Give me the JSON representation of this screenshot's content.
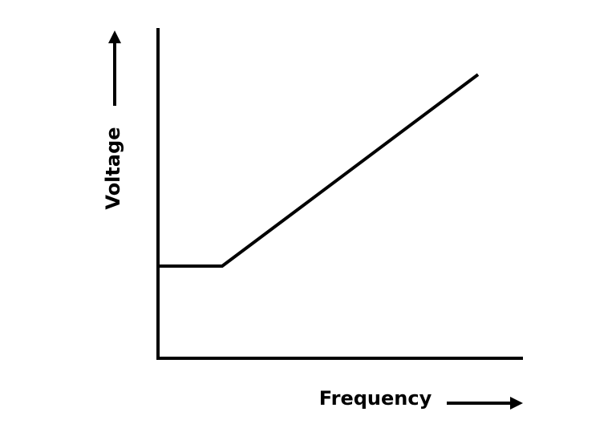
{
  "axes": {
    "y_label": "Voltage",
    "x_label": "Frequency"
  }
}
